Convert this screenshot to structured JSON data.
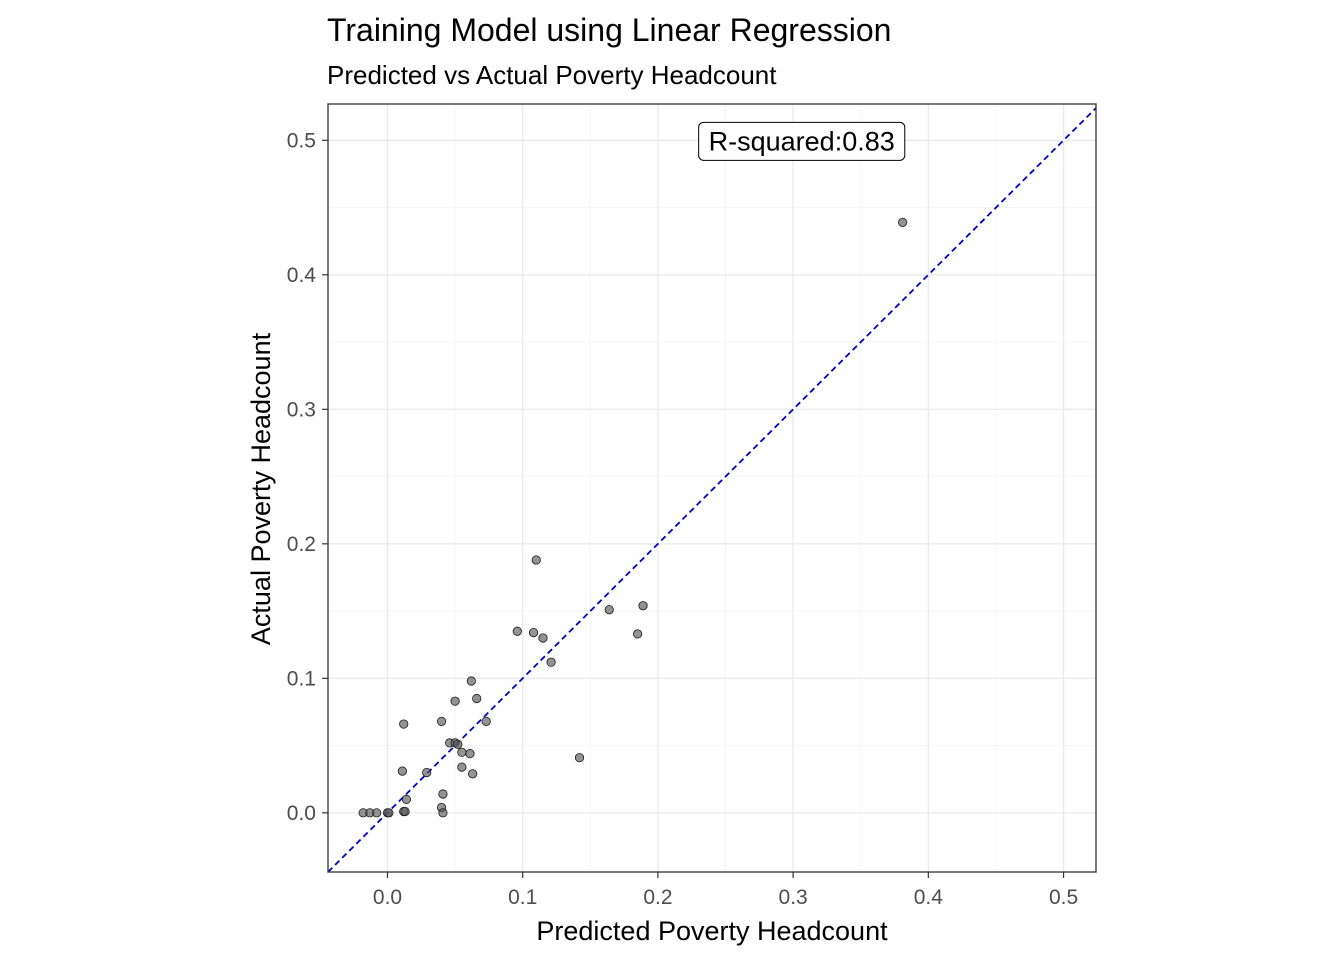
{
  "chart_data": {
    "type": "scatter",
    "title": "Training Model using Linear Regression",
    "subtitle": "Predicted vs Actual Poverty Headcount",
    "xlabel": "Predicted Poverty Headcount",
    "ylabel": "Actual Poverty Headcount",
    "xlim": [
      -0.044,
      0.524
    ],
    "ylim": [
      -0.044,
      0.527
    ],
    "x_ticks": [
      0.0,
      0.1,
      0.2,
      0.3,
      0.4,
      0.5
    ],
    "x_tick_labels": [
      "0.0",
      "0.1",
      "0.2",
      "0.3",
      "0.4",
      "0.5"
    ],
    "y_ticks": [
      0.0,
      0.1,
      0.2,
      0.3,
      0.4,
      0.5
    ],
    "y_tick_labels": [
      "0.0",
      "0.1",
      "0.2",
      "0.3",
      "0.4",
      "0.5"
    ],
    "grid": true,
    "annotation": {
      "text": "R-squared:0.83",
      "x": 0.225,
      "y": 0.5
    },
    "reference_line": {
      "slope": 1,
      "intercept": 0,
      "color": "#0000CD",
      "style": "dashed"
    },
    "point_color": "#595959",
    "points": [
      {
        "x": 0.381,
        "y": 0.439
      },
      {
        "x": 0.11,
        "y": 0.188
      },
      {
        "x": 0.189,
        "y": 0.154
      },
      {
        "x": 0.164,
        "y": 0.151
      },
      {
        "x": 0.096,
        "y": 0.135
      },
      {
        "x": 0.108,
        "y": 0.134
      },
      {
        "x": 0.185,
        "y": 0.133
      },
      {
        "x": 0.115,
        "y": 0.13
      },
      {
        "x": 0.121,
        "y": 0.112
      },
      {
        "x": 0.062,
        "y": 0.098
      },
      {
        "x": 0.066,
        "y": 0.085
      },
      {
        "x": 0.05,
        "y": 0.083
      },
      {
        "x": 0.073,
        "y": 0.068
      },
      {
        "x": 0.04,
        "y": 0.068
      },
      {
        "x": 0.012,
        "y": 0.066
      },
      {
        "x": 0.046,
        "y": 0.052
      },
      {
        "x": 0.05,
        "y": 0.052
      },
      {
        "x": 0.052,
        "y": 0.051
      },
      {
        "x": 0.055,
        "y": 0.045
      },
      {
        "x": 0.061,
        "y": 0.044
      },
      {
        "x": 0.142,
        "y": 0.041
      },
      {
        "x": 0.055,
        "y": 0.034
      },
      {
        "x": 0.011,
        "y": 0.031
      },
      {
        "x": 0.029,
        "y": 0.03
      },
      {
        "x": 0.063,
        "y": 0.029
      },
      {
        "x": 0.041,
        "y": 0.014
      },
      {
        "x": 0.014,
        "y": 0.01
      },
      {
        "x": 0.04,
        "y": 0.004
      },
      {
        "x": 0.012,
        "y": 0.001
      },
      {
        "x": 0.013,
        "y": 0.001
      },
      {
        "x": 0.041,
        "y": 0.0
      },
      {
        "x": -0.018,
        "y": 0.0
      },
      {
        "x": -0.013,
        "y": 0.0
      },
      {
        "x": -0.008,
        "y": 0.0
      },
      {
        "x": 0.0,
        "y": 0.0
      },
      {
        "x": 0.001,
        "y": 0.0
      }
    ]
  }
}
